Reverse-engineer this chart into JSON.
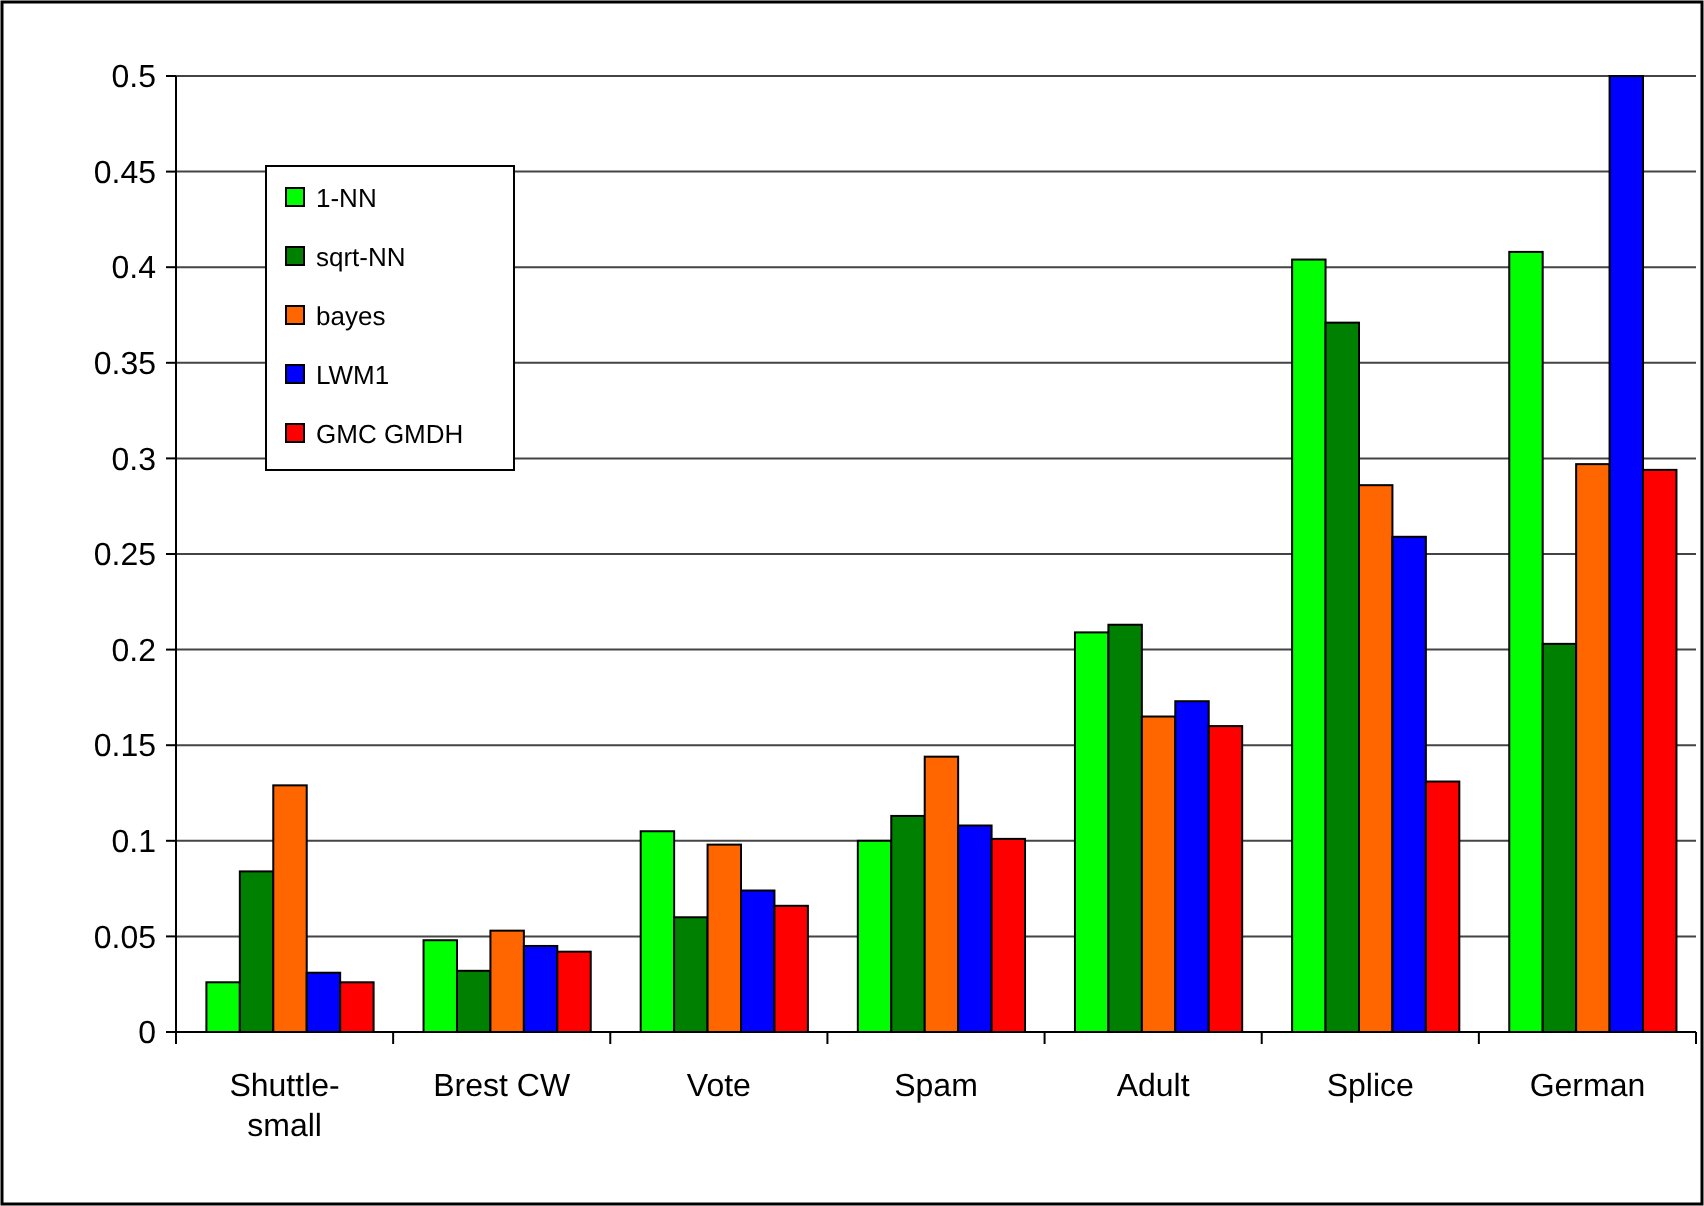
{
  "chart_data": {
    "type": "bar",
    "categories": [
      "Shuttle-small",
      "Brest CW",
      "Vote",
      "Spam",
      "Adult",
      "Splice",
      "German"
    ],
    "series": [
      {
        "name": "1-NN",
        "color": "#00ff00",
        "values": [
          0.026,
          0.048,
          0.105,
          0.1,
          0.209,
          0.404,
          0.408
        ]
      },
      {
        "name": "sqrt-NN",
        "color": "#008000",
        "values": [
          0.084,
          0.032,
          0.06,
          0.113,
          0.213,
          0.371,
          0.203
        ]
      },
      {
        "name": "bayes",
        "color": "#ff6600",
        "values": [
          0.129,
          0.053,
          0.098,
          0.144,
          0.165,
          0.286,
          0.297
        ]
      },
      {
        "name": "LWM1",
        "color": "#0000ff",
        "values": [
          0.031,
          0.045,
          0.074,
          0.108,
          0.173,
          0.259,
          0.5
        ]
      },
      {
        "name": "GMC GMDH",
        "color": "#ff0000",
        "values": [
          0.026,
          0.042,
          0.066,
          0.101,
          0.16,
          0.131,
          0.294
        ]
      }
    ],
    "ylim": [
      0,
      0.5
    ],
    "yticks": [
      0,
      0.05,
      0.1,
      0.15,
      0.2,
      0.25,
      0.3,
      0.35,
      0.4,
      0.45,
      0.5
    ],
    "grid": "y",
    "legend": "top left"
  }
}
